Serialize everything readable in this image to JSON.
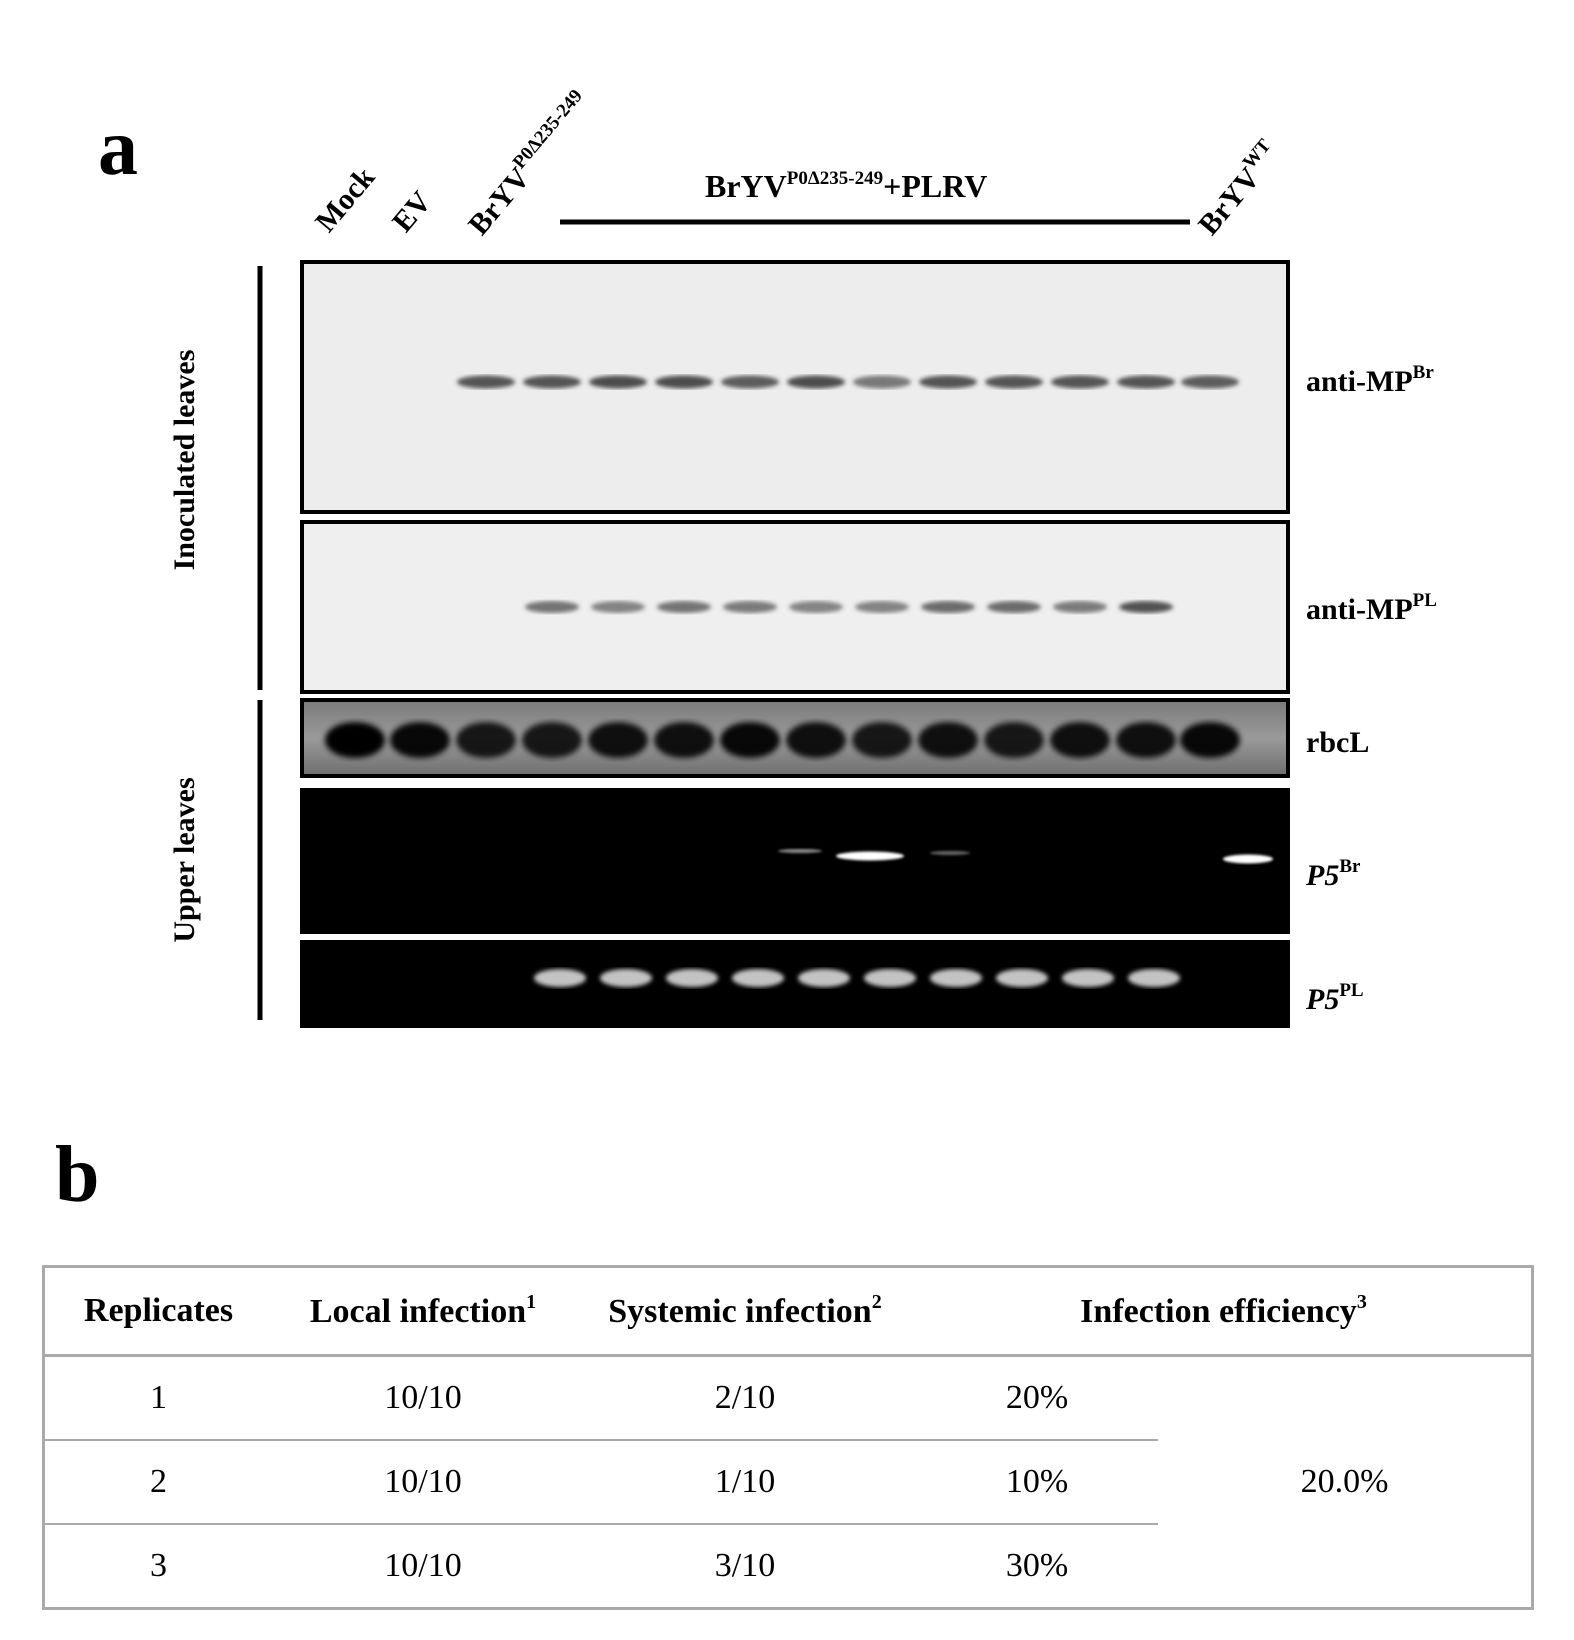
{
  "panel_a": {
    "letter": "a",
    "lanes": [
      "Mock",
      "EV",
      "BrYV",
      "BrYV"
    ],
    "lane_sups": [
      "",
      "",
      "P0Δ235-249",
      "WT"
    ],
    "group_label": {
      "base": "BrYV",
      "sup": "P0Δ235-249",
      "rest": "+PLRV"
    },
    "side_labels": {
      "inoculated": "Inoculated leaves",
      "upper": "Upper leaves"
    },
    "rows": [
      {
        "base": "anti-MP",
        "sup": "Br",
        "italic": false
      },
      {
        "base": "anti-MP",
        "sup": "PL",
        "italic": false
      },
      {
        "base": "rbcL",
        "sup": "",
        "italic": false
      },
      {
        "base": "P5",
        "sup": "Br",
        "italic": true
      },
      {
        "base": "P5",
        "sup": "PL",
        "italic": true
      }
    ]
  },
  "panel_b": {
    "letter": "b",
    "headers": [
      {
        "base": "Replicates",
        "sup": ""
      },
      {
        "base": "Local infection",
        "sup": "1"
      },
      {
        "base": "Systemic infection",
        "sup": "2"
      },
      {
        "base": "Infection efficiency",
        "sup": "3"
      }
    ],
    "rows": [
      {
        "replicate": "1",
        "local": "10/10",
        "systemic": "2/10",
        "efficiency": "20%"
      },
      {
        "replicate": "2",
        "local": "10/10",
        "systemic": "1/10",
        "efficiency": "10%"
      },
      {
        "replicate": "3",
        "local": "10/10",
        "systemic": "3/10",
        "efficiency": "30%"
      }
    ],
    "overall_efficiency": "20.0%"
  }
}
